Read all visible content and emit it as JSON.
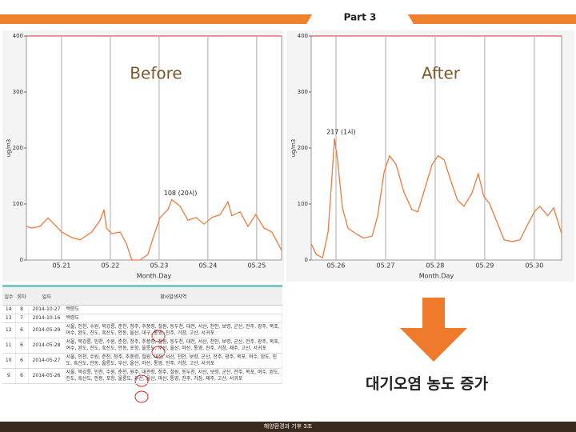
{
  "header": {
    "tab": "Part 3"
  },
  "chart_data": [
    {
      "type": "line",
      "title": "Before",
      "x_label": "Month.Day",
      "y_label": "ug/m3",
      "annotation": "108 (20시)",
      "xlim": [
        20.28,
        25.51
      ],
      "xticks": [
        {
          "value": 21,
          "label": "05.21"
        },
        {
          "value": 22,
          "label": "05.22"
        },
        {
          "value": 23,
          "label": "05.23"
        },
        {
          "value": 24,
          "label": "05.24"
        },
        {
          "value": 25,
          "label": "05.25"
        }
      ],
      "ylim": [
        0,
        400
      ],
      "yticks": [
        0,
        100,
        200,
        300,
        400
      ],
      "grid": true,
      "color": "#f07a3c",
      "x": [
        20.28,
        20.39,
        20.56,
        20.72,
        20.85,
        21.0,
        21.21,
        21.38,
        21.62,
        21.79,
        21.87,
        21.92,
        22.03,
        22.2,
        22.33,
        22.44,
        22.61,
        22.77,
        22.89,
        23.02,
        23.18,
        23.26,
        23.43,
        23.59,
        23.76,
        23.92,
        24.08,
        24.25,
        24.41,
        24.49,
        24.66,
        24.82,
        24.98,
        25.15,
        25.31,
        25.51
      ],
      "values": [
        60,
        57,
        60,
        75,
        64,
        50,
        40,
        36,
        50,
        71,
        90,
        57,
        47,
        50,
        29,
        0,
        0,
        10,
        43,
        76,
        90,
        108,
        96,
        71,
        76,
        64,
        76,
        81,
        104,
        79,
        86,
        60,
        81,
        57,
        50,
        17
      ]
    },
    {
      "type": "line",
      "title": "After",
      "x_label": "Month.Day",
      "y_label": "ug/m3",
      "annotation": "217 (1시)",
      "xlim": [
        25.5,
        30.55
      ],
      "xticks": [
        {
          "value": 26,
          "label": "05.26"
        },
        {
          "value": 27,
          "label": "05.27"
        },
        {
          "value": 28,
          "label": "05.28"
        },
        {
          "value": 29,
          "label": "05.29"
        },
        {
          "value": 30,
          "label": "05.30"
        }
      ],
      "ylim": [
        0,
        400
      ],
      "yticks": [
        0,
        100,
        200,
        300,
        400
      ],
      "grid": true,
      "color": "#f07a3c",
      "x": [
        25.5,
        25.6,
        25.73,
        25.84,
        25.92,
        25.97,
        26.03,
        26.13,
        26.24,
        26.4,
        26.56,
        26.73,
        26.84,
        26.97,
        27.08,
        27.21,
        27.37,
        27.53,
        27.65,
        27.77,
        27.94,
        28.06,
        28.18,
        28.31,
        28.45,
        28.58,
        28.74,
        28.87,
        28.98,
        29.1,
        29.23,
        29.39,
        29.55,
        29.71,
        29.87,
        30.0,
        30.11,
        30.27,
        30.39,
        30.55
      ],
      "values": [
        29,
        10,
        4,
        50,
        150,
        217,
        179,
        93,
        57,
        47,
        39,
        43,
        79,
        157,
        186,
        171,
        121,
        90,
        86,
        121,
        171,
        186,
        179,
        143,
        107,
        96,
        119,
        154,
        114,
        100,
        71,
        36,
        33,
        36,
        64,
        86,
        96,
        79,
        93,
        47
      ]
    }
  ],
  "table": {
    "header": [
      "일수",
      "회차",
      "일자",
      "황사발생지역"
    ],
    "rows": [
      [
        "14",
        "8",
        "2014-10-27",
        "백령도"
      ],
      [
        "13",
        "7",
        "2014-10-16",
        "백령도"
      ],
      [
        "12",
        "6",
        "2014-05-29",
        "서울, 인천, 수원, 북강릉, 춘천, 청주, 추풍령, 철원, 동두천, 대전, 서산, 천안, 보령, 군산, 전주, 광주, 목포, 여수, 완도, 진도, 흑산도, 안동, 울산, 대구, 통영, 진주, 거창, 고산, 서귀포"
      ],
      [
        "11",
        "6",
        "2014-05-28",
        "서울, 북강릉, 인천, 수원, 춘천, 청주, 추풍령, 철원, 동두천, 대전, 서산, 천안, 보령, 군산, 전주, 광주, 목포, 여수, 완도, 진도, 흑산도, 안동, 포항, 울릉도, 부산, 울산, 마산, 통영, 진주, 거창, 제주, 고산, 서귀포"
      ],
      [
        "10",
        "6",
        "2014-05-27",
        "서울, 인천, 수원, 춘천, 청주, 추풍령, 철원, 대전, 서산, 천안, 보령, 군산, 전주, 광주, 목포, 여수, 완도, 진도, 흑산도, 안동, 울릉도, 부산, 울산, 마산, 통영, 진주, 거창, 고산, 서귀포"
      ],
      [
        "9",
        "6",
        "2014-05-26",
        "서울, 북강릉, 인천, 수원, 춘천, 원주, 대관령, 청주, 철원, 동두천, 서산, 보령, 군산, 전주, 목포, 여수, 완도, 진도, 흑산도, 안동, 포항, 울릉도, 부산, 울산, 마산, 통영, 진주, 거창, 제주, 고산, 서귀포"
      ]
    ]
  },
  "caption": "대기오염 농도 증가",
  "footer": "해양환경과 기후 3조"
}
